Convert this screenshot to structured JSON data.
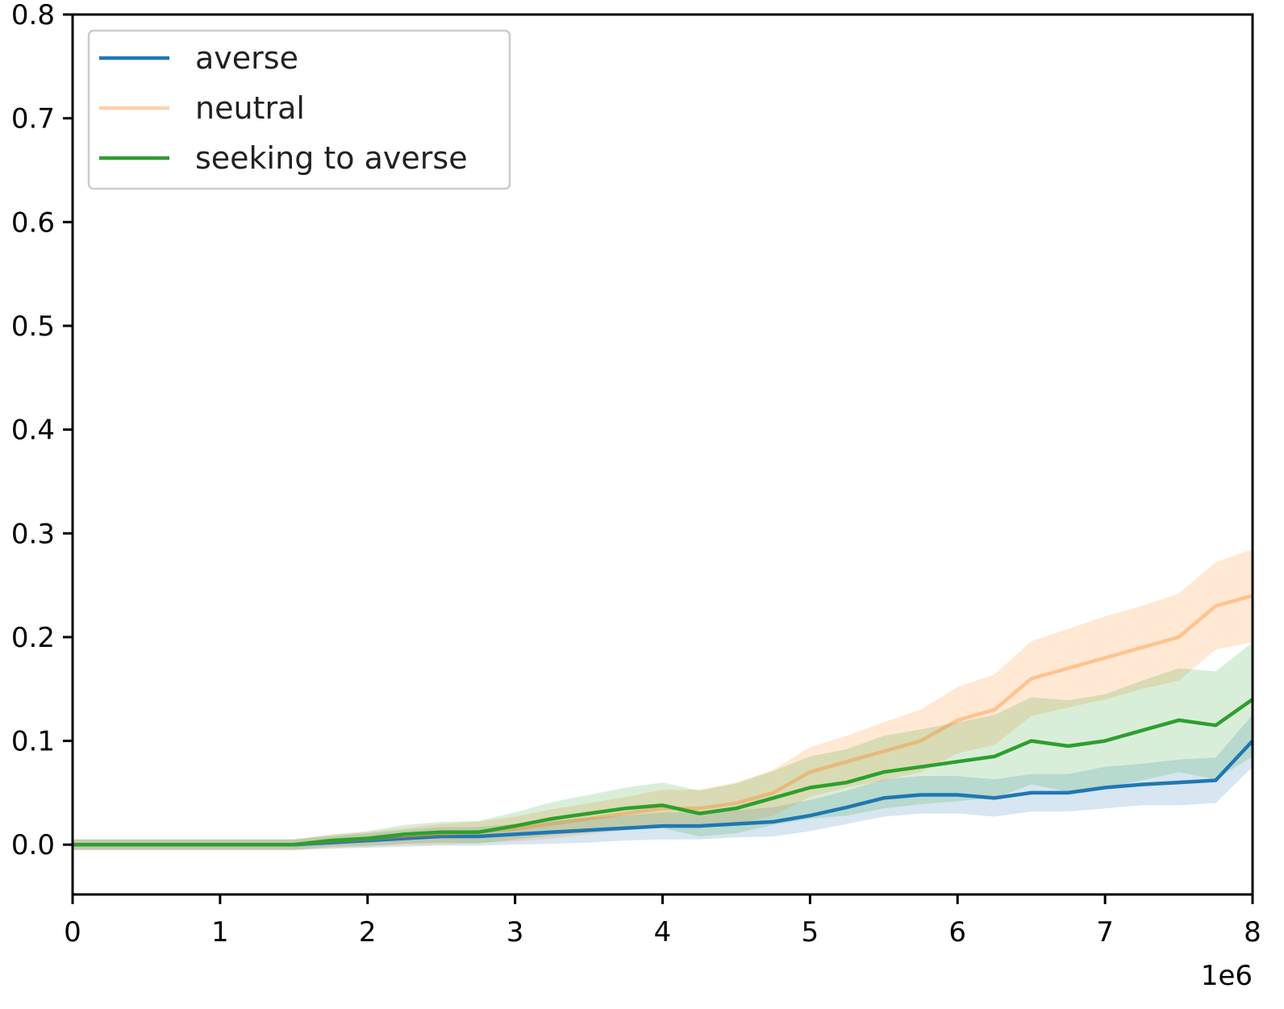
{
  "chart_data": {
    "type": "line",
    "title": "",
    "xlabel": "",
    "ylabel": "",
    "x_offset_label": "1e6",
    "xlim": [
      0,
      8
    ],
    "ylim": [
      -0.048,
      0.8
    ],
    "xticks": [
      "0",
      "1",
      "2",
      "3",
      "4",
      "5",
      "6",
      "7",
      "8"
    ],
    "yticks": [
      "0.0",
      "0.1",
      "0.2",
      "0.3",
      "0.4",
      "0.5",
      "0.6",
      "0.7",
      "0.8"
    ],
    "grid": false,
    "legend_position": "top-left",
    "x": [
      0,
      0.25,
      0.5,
      0.75,
      1.0,
      1.25,
      1.5,
      1.75,
      2.0,
      2.25,
      2.5,
      2.75,
      3.0,
      3.25,
      3.5,
      3.75,
      4.0,
      4.25,
      4.5,
      4.75,
      5.0,
      5.25,
      5.5,
      5.75,
      6.0,
      6.25,
      6.5,
      6.75,
      7.0,
      7.25,
      7.5,
      7.75,
      8.0
    ],
    "series": [
      {
        "name": "averse",
        "color": "#1f77b4",
        "line_opacity": 1.0,
        "values": [
          0,
          0,
          0,
          0,
          0,
          0,
          0,
          0.002,
          0.004,
          0.006,
          0.008,
          0.008,
          0.01,
          0.012,
          0.014,
          0.016,
          0.018,
          0.018,
          0.02,
          0.022,
          0.028,
          0.036,
          0.045,
          0.048,
          0.048,
          0.045,
          0.05,
          0.05,
          0.055,
          0.058,
          0.06,
          0.062,
          0.1
        ],
        "band": [
          0.005,
          0.005,
          0.005,
          0.005,
          0.005,
          0.005,
          0.005,
          0.006,
          0.007,
          0.008,
          0.009,
          0.009,
          0.01,
          0.011,
          0.012,
          0.012,
          0.013,
          0.013,
          0.013,
          0.014,
          0.015,
          0.016,
          0.018,
          0.018,
          0.018,
          0.018,
          0.018,
          0.018,
          0.02,
          0.02,
          0.022,
          0.022,
          0.025
        ]
      },
      {
        "name": "neutral",
        "color": "#ff7f0e",
        "line_opacity": 0.35,
        "values": [
          0,
          0,
          0,
          0,
          0,
          0,
          0,
          0.003,
          0.005,
          0.008,
          0.01,
          0.012,
          0.015,
          0.02,
          0.025,
          0.03,
          0.035,
          0.035,
          0.04,
          0.05,
          0.07,
          0.08,
          0.09,
          0.1,
          0.12,
          0.13,
          0.16,
          0.17,
          0.18,
          0.19,
          0.2,
          0.23,
          0.24
        ],
        "band": [
          0.005,
          0.005,
          0.005,
          0.005,
          0.005,
          0.005,
          0.005,
          0.006,
          0.007,
          0.008,
          0.01,
          0.01,
          0.012,
          0.014,
          0.015,
          0.016,
          0.018,
          0.018,
          0.02,
          0.022,
          0.024,
          0.025,
          0.028,
          0.03,
          0.032,
          0.034,
          0.036,
          0.038,
          0.04,
          0.04,
          0.042,
          0.042,
          0.045
        ]
      },
      {
        "name": "seeking to averse",
        "color": "#2ca02c",
        "line_opacity": 1.0,
        "values": [
          0,
          0,
          0,
          0,
          0,
          0,
          0,
          0.004,
          0.006,
          0.01,
          0.012,
          0.012,
          0.018,
          0.025,
          0.03,
          0.035,
          0.038,
          0.03,
          0.035,
          0.045,
          0.055,
          0.06,
          0.07,
          0.075,
          0.08,
          0.085,
          0.1,
          0.095,
          0.1,
          0.11,
          0.12,
          0.115,
          0.14
        ],
        "band": [
          0.005,
          0.005,
          0.005,
          0.005,
          0.005,
          0.005,
          0.005,
          0.006,
          0.007,
          0.009,
          0.01,
          0.011,
          0.013,
          0.016,
          0.018,
          0.02,
          0.022,
          0.022,
          0.024,
          0.026,
          0.03,
          0.032,
          0.035,
          0.036,
          0.038,
          0.04,
          0.042,
          0.044,
          0.045,
          0.048,
          0.05,
          0.052,
          0.055
        ]
      }
    ]
  }
}
